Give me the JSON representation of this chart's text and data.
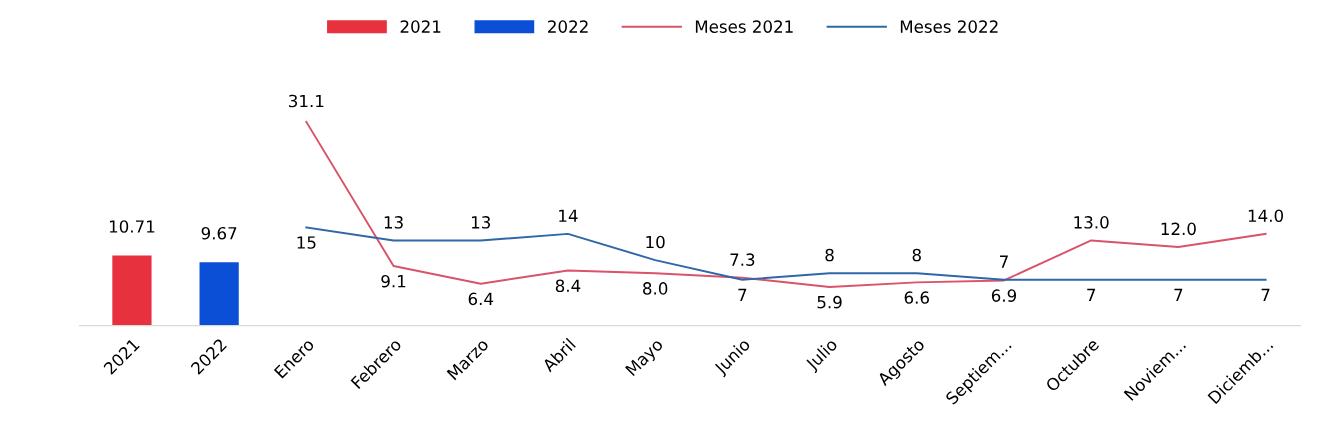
{
  "chart_data": {
    "type": "bar",
    "categories": [
      "2021",
      "2022",
      "Enero",
      "Febrero",
      "Marzo",
      "Abril",
      "Mayo",
      "Junio",
      "Julio",
      "Agosto",
      "Septiem...",
      "Octubre",
      "Noviem...",
      "Diciemb..."
    ],
    "series": [
      {
        "name": "2021",
        "color": "#e8313f",
        "values": [
          10.71,
          null,
          null,
          null,
          null,
          null,
          null,
          null,
          null,
          null,
          null,
          null,
          null,
          null
        ],
        "value_labels": [
          "10.71",
          null,
          null,
          null,
          null,
          null,
          null,
          null,
          null,
          null,
          null,
          null,
          null,
          null
        ]
      },
      {
        "name": "2022",
        "color": "#0a4fd6",
        "values": [
          null,
          9.67,
          null,
          null,
          null,
          null,
          null,
          null,
          null,
          null,
          null,
          null,
          null,
          null
        ],
        "value_labels": [
          null,
          "9.67",
          null,
          null,
          null,
          null,
          null,
          null,
          null,
          null,
          null,
          null,
          null,
          null
        ]
      },
      {
        "name": "Meses 2021",
        "type": "line",
        "color": "#d9536a",
        "values": [
          null,
          null,
          31.1,
          9.1,
          6.4,
          8.4,
          8.0,
          7.3,
          5.9,
          6.6,
          6.9,
          13.0,
          12.0,
          14.0
        ],
        "value_labels": [
          null,
          null,
          "31.1",
          "9.1",
          "6.4",
          "8.4",
          "8.0",
          "7.3",
          "5.9",
          "6.6",
          "6.9",
          "13.0",
          "12.0",
          "14.0"
        ]
      },
      {
        "name": "Meses 2022",
        "type": "line",
        "color": "#2f67a8",
        "values": [
          null,
          null,
          15,
          13,
          13,
          14,
          10,
          7,
          8,
          8,
          7,
          7,
          7,
          7
        ],
        "value_labels": [
          null,
          null,
          "15",
          "13",
          "13",
          "14",
          "10",
          "7",
          "8",
          "8",
          "7",
          "7",
          "7",
          "7"
        ]
      }
    ],
    "legend": "top",
    "marker": "none",
    "line_style": "solid"
  }
}
